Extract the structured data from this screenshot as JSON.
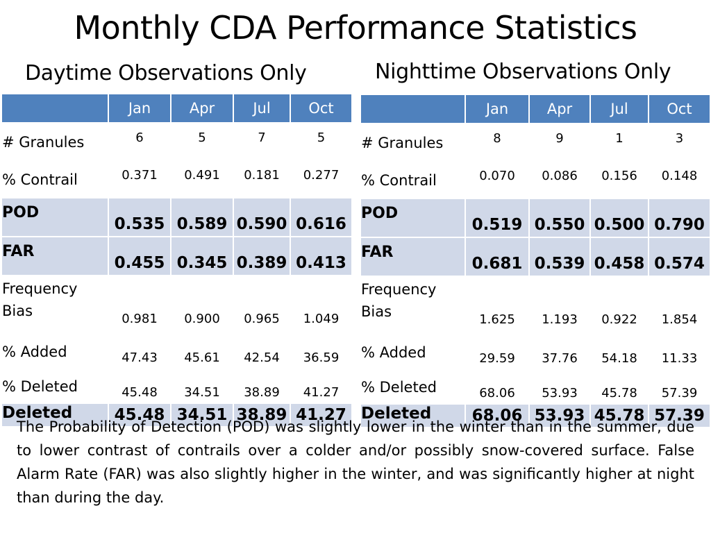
{
  "title": "Monthly CDA Performance Statistics",
  "months": [
    "Jan",
    "Apr",
    "Jul",
    "Oct"
  ],
  "day": {
    "heading": "Daytime Observations Only",
    "rows": [
      {
        "label": "# Granules",
        "values": [
          "6",
          "5",
          "7",
          "5"
        ]
      },
      {
        "label": "% Contrail",
        "values": [
          "0.371",
          "0.491",
          "0.181",
          "0.277"
        ]
      },
      {
        "label": "POD",
        "values": [
          "0.535",
          "0.589",
          "0.590",
          "0.616"
        ]
      },
      {
        "label": "FAR",
        "values": [
          "0.455",
          "0.345",
          "0.389",
          "0.413"
        ]
      },
      {
        "label": "Frequency Bias",
        "values": [
          "0.981",
          "0.900",
          "0.965",
          "1.049"
        ]
      },
      {
        "label": "% Added",
        "values": [
          "47.43",
          "45.61",
          "42.54",
          "36.59"
        ]
      },
      {
        "label": "% Deleted",
        "values": [
          "45.48",
          "34.51",
          "38.89",
          "41.27"
        ]
      },
      {
        "label": "Deleted",
        "values": [
          "45.48",
          "34.51",
          "38.89",
          "41.27"
        ]
      }
    ]
  },
  "night": {
    "heading": "Nighttime Observations Only",
    "rows": [
      {
        "label": "# Granules",
        "values": [
          "8",
          "9",
          "1",
          "3"
        ]
      },
      {
        "label": "% Contrail",
        "values": [
          "0.070",
          "0.086",
          "0.156",
          "0.148"
        ]
      },
      {
        "label": "POD",
        "values": [
          "0.519",
          "0.550",
          "0.500",
          "0.790"
        ]
      },
      {
        "label": "FAR",
        "values": [
          "0.681",
          "0.539",
          "0.458",
          "0.574"
        ]
      },
      {
        "label": "Frequency Bias",
        "values": [
          "1.625",
          "1.193",
          "0.922",
          "1.854"
        ]
      },
      {
        "label": "% Added",
        "values": [
          "29.59",
          "37.76",
          "54.18",
          "11.33"
        ]
      },
      {
        "label": "% Deleted",
        "values": [
          "68.06",
          "53.93",
          "45.78",
          "57.39"
        ]
      },
      {
        "label": "Deleted",
        "values": [
          "68.06",
          "53.93",
          "45.78",
          "57.39"
        ]
      }
    ]
  },
  "caption": "The Probability of Detection (POD) was slightly lower in the winter than in the summer, due to lower contrast of contrails over a colder and/or possibly snow-covered surface.  False Alarm Rate (FAR) was also slightly higher in the winter, and was significantly higher at night than during the day."
}
